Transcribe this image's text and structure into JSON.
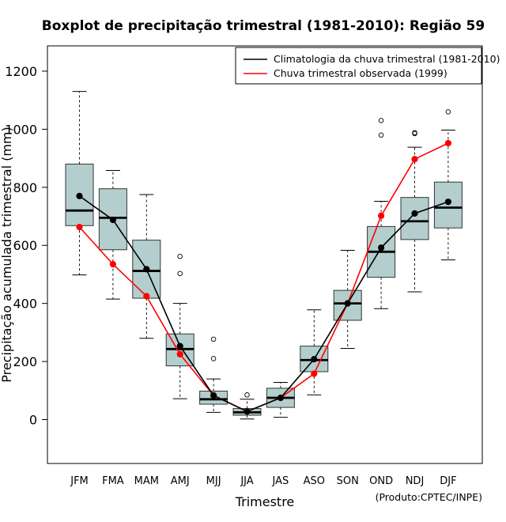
{
  "chart_data": {
    "type": "boxplot",
    "title": "Boxplot de precipitação trimestral (1981-2010): Região 59",
    "xlabel": "Trimestre",
    "ylabel": "Precipitação acumulada trimestral (mm)",
    "ylim": [
      -150,
      1280
    ],
    "yticks": [
      0,
      200,
      400,
      600,
      800,
      1000,
      1200
    ],
    "categories": [
      "JFM",
      "FMA",
      "MAM",
      "AMJ",
      "MJJ",
      "JJA",
      "JAS",
      "ASO",
      "SON",
      "OND",
      "NDJ",
      "DJF"
    ],
    "boxes": [
      {
        "whisker_low": 498,
        "q1": 668,
        "median": 720,
        "q3": 880,
        "whisker_high": 1130,
        "outliers": []
      },
      {
        "whisker_low": 415,
        "q1": 585,
        "median": 695,
        "q3": 795,
        "whisker_high": 858,
        "outliers": []
      },
      {
        "whisker_low": 280,
        "q1": 418,
        "median": 512,
        "q3": 618,
        "whisker_high": 775,
        "outliers": []
      },
      {
        "whisker_low": 72,
        "q1": 185,
        "median": 243,
        "q3": 295,
        "whisker_high": 400,
        "outliers": [
          503,
          562
        ]
      },
      {
        "whisker_low": 25,
        "q1": 53,
        "median": 70,
        "q3": 98,
        "whisker_high": 140,
        "outliers": [
          210,
          277
        ]
      },
      {
        "whisker_low": 2,
        "q1": 15,
        "median": 25,
        "q3": 38,
        "whisker_high": 70,
        "outliers": [
          85
        ]
      },
      {
        "whisker_low": 8,
        "q1": 42,
        "median": 75,
        "q3": 108,
        "whisker_high": 128,
        "outliers": []
      },
      {
        "whisker_low": 85,
        "q1": 165,
        "median": 205,
        "q3": 253,
        "whisker_high": 378,
        "outliers": []
      },
      {
        "whisker_low": 245,
        "q1": 342,
        "median": 400,
        "q3": 445,
        "whisker_high": 583,
        "outliers": []
      },
      {
        "whisker_low": 382,
        "q1": 490,
        "median": 578,
        "q3": 665,
        "whisker_high": 752,
        "outliers": [
          980,
          1030
        ]
      },
      {
        "whisker_low": 440,
        "q1": 620,
        "median": 683,
        "q3": 765,
        "whisker_high": 938,
        "outliers": [
          985,
          988
        ]
      },
      {
        "whisker_low": 550,
        "q1": 660,
        "median": 730,
        "q3": 818,
        "whisker_high": 997,
        "outliers": [
          1060
        ]
      }
    ],
    "series": [
      {
        "name": "Climatologia da chuva trimestral (1981-2010)",
        "color": "#000000",
        "values": [
          770,
          688,
          518,
          253,
          83,
          28,
          75,
          208,
          400,
          592,
          710,
          750
        ]
      },
      {
        "name": "Chuva trimestral observada (1999)",
        "color": "#ff0000",
        "values": [
          663,
          535,
          425,
          225,
          83,
          28,
          75,
          158,
          400,
          702,
          897,
          952
        ]
      }
    ],
    "box_fill": "#b4cece",
    "legend_position": "top-right",
    "credit": "(Produto:CPTEC/INPE)"
  }
}
